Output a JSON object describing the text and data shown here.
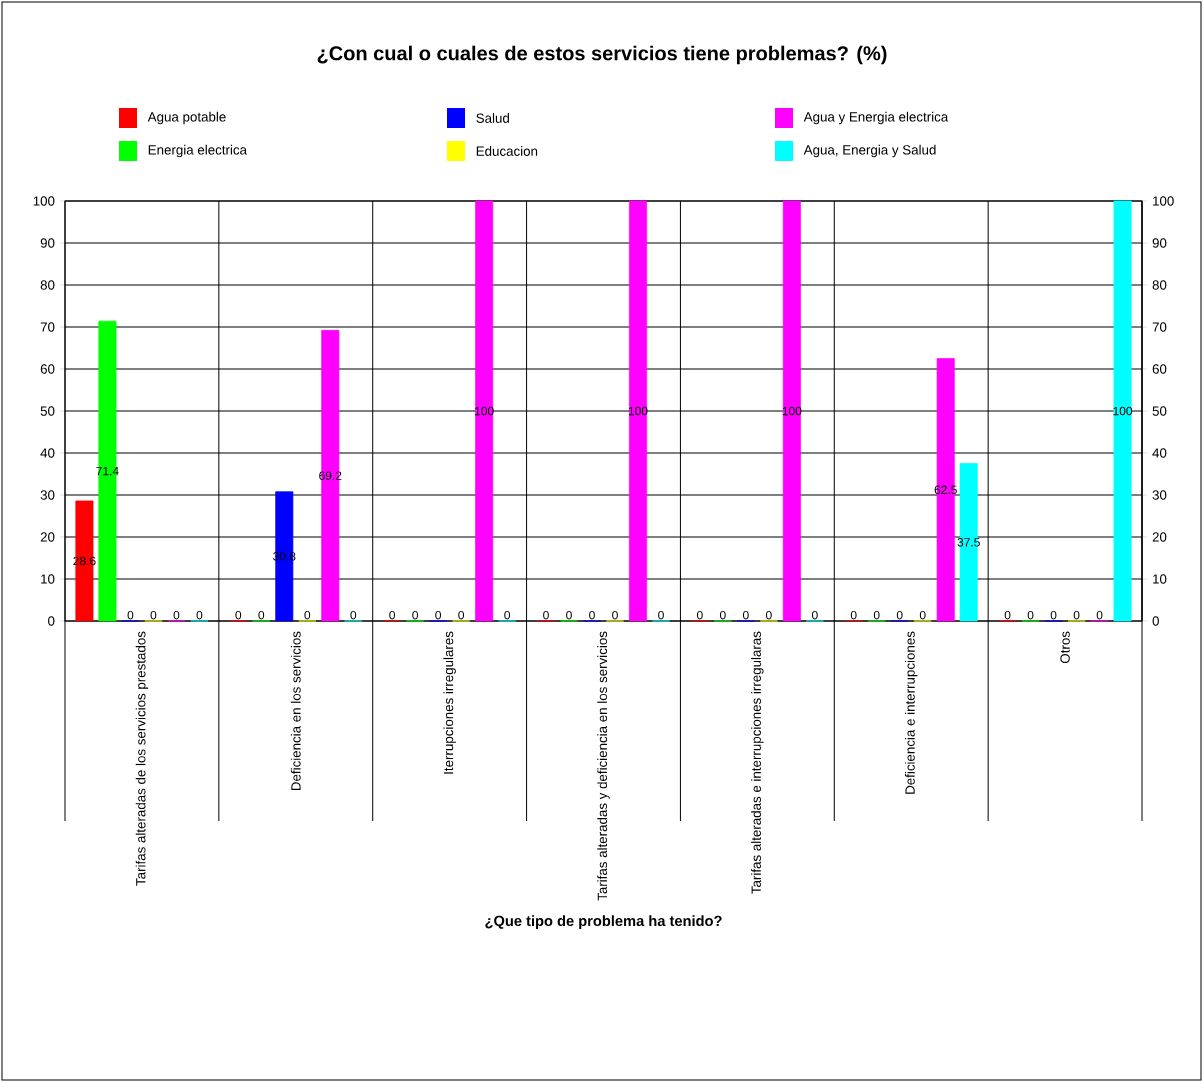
{
  "chart_data": {
    "type": "bar",
    "title": "¿Con cual o cuales de estos servicios tiene problemas? (%)",
    "xlabel": "¿Que tipo de problema ha tenido?",
    "categories": [
      "Tarifas alteradas de los servicios prestados",
      "Deficiencia en los servicios",
      "Iterrupciones irregulares",
      "Tarifas alteradas y deficiencia en los servicios",
      "Tarifas alteradas e interrupciones irregularas",
      "Deficiencia e interrupciones",
      "Otros"
    ],
    "series": [
      {
        "name": "Agua potable",
        "color": "#ff0000",
        "values": [
          28.6,
          0,
          0,
          0,
          0,
          0,
          0
        ]
      },
      {
        "name": "Energia electrica",
        "color": "#00ff00",
        "values": [
          71.4,
          0,
          0,
          0,
          0,
          0,
          0
        ]
      },
      {
        "name": "Salud",
        "color": "#0000ff",
        "values": [
          0,
          30.8,
          0,
          0,
          0,
          0,
          0
        ]
      },
      {
        "name": "Educacion",
        "color": "#ffff00",
        "values": [
          0,
          0,
          0,
          0,
          0,
          0,
          0
        ]
      },
      {
        "name": "Agua y Energia electrica",
        "color": "#ff00ff",
        "values": [
          0,
          69.2,
          100,
          100,
          100,
          62.5,
          0
        ]
      },
      {
        "name": "Agua, Energia y Salud",
        "color": "#00ffff",
        "values": [
          0,
          0,
          0,
          0,
          0,
          37.5,
          100
        ]
      }
    ],
    "ylim": [
      0,
      100
    ],
    "yticks": [
      0,
      10,
      20,
      30,
      40,
      50,
      60,
      70,
      80,
      90,
      100
    ],
    "y2lim": [
      0,
      100
    ],
    "y2ticks": [
      0,
      10,
      20,
      30,
      40,
      50,
      60,
      70,
      80,
      90,
      100
    ],
    "grid": "y",
    "legend": "top",
    "data_labels": true
  }
}
